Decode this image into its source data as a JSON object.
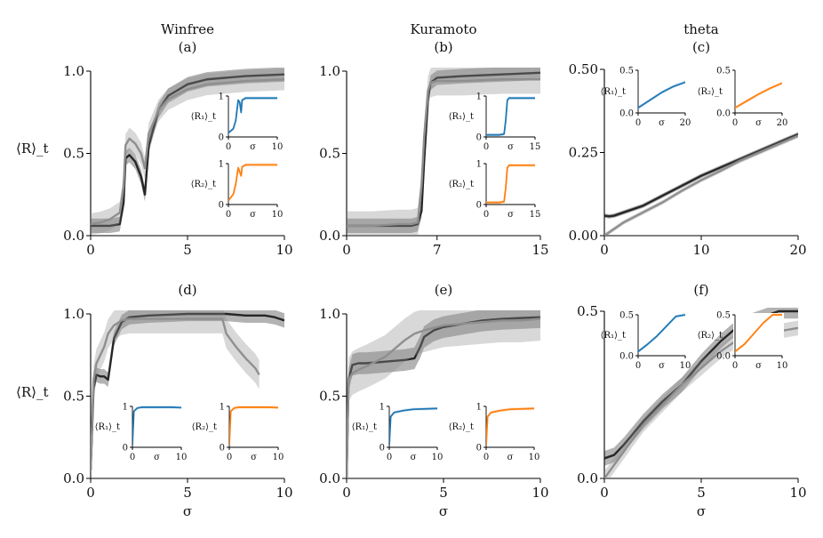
{
  "figure": {
    "row_ylabel": "⟨R⟩_t",
    "xlabel": "σ",
    "inset_ylabel_1": "⟨R₁⟩_t",
    "inset_ylabel_2": "⟨R₂⟩_t",
    "colors": {
      "dark": "#262626",
      "grey": "#8f8f8f",
      "blue": "#1f77b4",
      "orange": "#ff7f0e"
    }
  },
  "chart_data": [
    {
      "id": "a",
      "type": "line",
      "title": "Winfree",
      "panel_label": "(a)",
      "xlabel": "",
      "ylabel": "⟨R⟩_t",
      "xlim": [
        0,
        10
      ],
      "ylim": [
        0,
        1
      ],
      "xticks": [
        0,
        5,
        10
      ],
      "yticks": [
        0.0,
        0.5,
        1.0
      ],
      "series": [
        {
          "color": "dark",
          "x": [
            0,
            0.5,
            1,
            1.5,
            1.7,
            1.8,
            2,
            2.3,
            2.6,
            2.8,
            3,
            3.5,
            4,
            5,
            6,
            8,
            10
          ],
          "y": [
            0.06,
            0.06,
            0.06,
            0.07,
            0.2,
            0.47,
            0.49,
            0.45,
            0.36,
            0.25,
            0.55,
            0.76,
            0.85,
            0.92,
            0.95,
            0.97,
            0.98
          ],
          "band": 0.02
        },
        {
          "color": "grey",
          "x": [
            0,
            0.5,
            1,
            1.5,
            1.7,
            1.8,
            2,
            2.3,
            2.6,
            2.8,
            3,
            3.5,
            4,
            5,
            6,
            8,
            10
          ],
          "y": [
            0.07,
            0.08,
            0.1,
            0.14,
            0.3,
            0.55,
            0.59,
            0.56,
            0.5,
            0.41,
            0.62,
            0.76,
            0.83,
            0.89,
            0.92,
            0.94,
            0.95
          ],
          "band": 0.03
        }
      ],
      "insets": [
        {
          "ylabel": "⟨R₁⟩_t",
          "color": "blue",
          "xlim": [
            0,
            10
          ],
          "ylim": [
            0,
            1
          ],
          "xticks": [
            0,
            10
          ],
          "yticks": [
            0,
            1
          ],
          "x": [
            0,
            1,
            1.5,
            2,
            2.3,
            2.6,
            2.8,
            3.5,
            5,
            10
          ],
          "y": [
            0.1,
            0.2,
            0.4,
            0.9,
            0.85,
            0.6,
            0.9,
            0.95,
            0.95,
            0.95
          ]
        },
        {
          "ylabel": "⟨R₂⟩_t",
          "color": "orange",
          "xlim": [
            0,
            10
          ],
          "ylim": [
            0,
            1
          ],
          "xticks": [
            0,
            10
          ],
          "yticks": [
            0,
            1
          ],
          "x": [
            0,
            1,
            1.5,
            2,
            2.3,
            2.6,
            2.8,
            3.5,
            5,
            10
          ],
          "y": [
            0.1,
            0.25,
            0.5,
            0.9,
            0.8,
            0.7,
            0.92,
            0.97,
            0.97,
            0.97
          ]
        }
      ]
    },
    {
      "id": "b",
      "type": "line",
      "title": "Kuramoto",
      "panel_label": "(b)",
      "xlabel": "",
      "ylabel": "",
      "xlim": [
        0,
        15
      ],
      "ylim": [
        0,
        1
      ],
      "xticks": [
        0,
        7,
        15
      ],
      "yticks": [
        0.0,
        0.5,
        1.0
      ],
      "series": [
        {
          "color": "dark",
          "x": [
            0,
            2,
            4,
            5,
            5.5,
            5.8,
            6,
            6.3,
            6.5,
            7,
            9,
            12,
            15
          ],
          "y": [
            0.06,
            0.06,
            0.06,
            0.06,
            0.07,
            0.15,
            0.45,
            0.83,
            0.93,
            0.96,
            0.97,
            0.98,
            0.99
          ],
          "band": 0.02
        },
        {
          "color": "grey",
          "x": [
            0,
            2,
            4,
            5,
            5.5,
            5.8,
            6,
            6.3,
            6.5,
            7,
            9,
            12,
            15
          ],
          "y": [
            0.06,
            0.06,
            0.07,
            0.07,
            0.08,
            0.3,
            0.6,
            0.88,
            0.93,
            0.94,
            0.94,
            0.95,
            0.95
          ],
          "band": 0.04
        }
      ],
      "insets": [
        {
          "ylabel": "⟨R₁⟩_t",
          "color": "blue",
          "xlim": [
            0,
            15
          ],
          "ylim": [
            0,
            1
          ],
          "xticks": [
            0,
            15
          ],
          "yticks": [
            0,
            1
          ],
          "x": [
            0,
            4,
            5.5,
            6,
            6.5,
            7,
            15
          ],
          "y": [
            0.05,
            0.05,
            0.07,
            0.4,
            0.9,
            0.95,
            0.95
          ]
        },
        {
          "ylabel": "⟨R₂⟩_t",
          "color": "orange",
          "xlim": [
            0,
            15
          ],
          "ylim": [
            0,
            1
          ],
          "xticks": [
            0,
            15
          ],
          "yticks": [
            0,
            1
          ],
          "x": [
            0,
            4,
            5.5,
            6,
            6.5,
            7,
            15
          ],
          "y": [
            0.05,
            0.05,
            0.07,
            0.4,
            0.9,
            0.96,
            0.96
          ]
        }
      ]
    },
    {
      "id": "c",
      "type": "line",
      "title": "theta",
      "panel_label": "(c)",
      "xlabel": "",
      "ylabel": "",
      "xlim": [
        0,
        20
      ],
      "ylim": [
        0,
        0.5
      ],
      "xticks": [
        0,
        10,
        20
      ],
      "yticks": [
        0.0,
        0.25,
        0.5
      ],
      "series": [
        {
          "color": "dark",
          "x": [
            0,
            0.5,
            1,
            2,
            4,
            6,
            8,
            10,
            12,
            14,
            16,
            18,
            20
          ],
          "y": [
            0.06,
            0.058,
            0.06,
            0.07,
            0.09,
            0.12,
            0.15,
            0.18,
            0.205,
            0.23,
            0.255,
            0.28,
            0.305
          ],
          "band": 0.003
        },
        {
          "color": "grey",
          "x": [
            0,
            0.5,
            1,
            2,
            4,
            6,
            8,
            10,
            12,
            14,
            16,
            18,
            20
          ],
          "y": [
            0.0,
            0.01,
            0.02,
            0.04,
            0.07,
            0.1,
            0.135,
            0.167,
            0.195,
            0.225,
            0.25,
            0.275,
            0.3
          ],
          "band": 0.003
        }
      ],
      "insets": [
        {
          "ylabel": "⟨R₁⟩_t",
          "color": "blue",
          "xlim": [
            0,
            20
          ],
          "ylim": [
            0,
            0.5
          ],
          "xticks": [
            0,
            20
          ],
          "yticks": [
            0.0,
            0.5
          ],
          "x": [
            0,
            5,
            10,
            15,
            20
          ],
          "y": [
            0.06,
            0.15,
            0.24,
            0.31,
            0.36
          ]
        },
        {
          "ylabel": "⟨R₂⟩_t",
          "color": "orange",
          "xlim": [
            0,
            20
          ],
          "ylim": [
            0,
            0.5
          ],
          "xticks": [
            0,
            20
          ],
          "yticks": [
            0.0,
            0.5
          ],
          "x": [
            0,
            5,
            10,
            15,
            20
          ],
          "y": [
            0.06,
            0.14,
            0.22,
            0.29,
            0.35
          ]
        }
      ]
    },
    {
      "id": "d",
      "type": "line",
      "title": "",
      "panel_label": "(d)",
      "xlabel": "σ",
      "ylabel": "⟨R⟩_t",
      "xlim": [
        0,
        10
      ],
      "ylim": [
        0,
        1
      ],
      "xticks": [
        0,
        5,
        10
      ],
      "yticks": [
        0.0,
        0.5,
        1.0
      ],
      "series": [
        {
          "color": "dark",
          "x": [
            0,
            0.15,
            0.3,
            0.5,
            0.7,
            0.9,
            1.2,
            1.6,
            2,
            3,
            4,
            5,
            6,
            7,
            8,
            9,
            9.5,
            10
          ],
          "y": [
            0.05,
            0.55,
            0.63,
            0.62,
            0.62,
            0.6,
            0.85,
            0.95,
            0.98,
            0.99,
            0.995,
            1.0,
            1.0,
            1.0,
            0.99,
            0.99,
            0.98,
            0.96
          ],
          "band": 0.02
        },
        {
          "color": "grey",
          "x": [
            0,
            0.15,
            0.3,
            0.5,
            0.7,
            0.9,
            1.2,
            1.6,
            2,
            3,
            4,
            5,
            6,
            6.8,
            7,
            7.5,
            8,
            8.5,
            8.7
          ],
          "y": [
            0.05,
            0.6,
            0.7,
            0.75,
            0.8,
            0.88,
            0.93,
            0.96,
            0.97,
            0.97,
            0.97,
            0.97,
            0.97,
            0.97,
            0.88,
            0.8,
            0.73,
            0.67,
            0.63
          ],
          "band": 0.04
        }
      ],
      "insets": [
        {
          "ylabel": "⟨R₁⟩_t",
          "color": "blue",
          "xlim": [
            0,
            10
          ],
          "ylim": [
            0,
            1
          ],
          "xticks": [
            0,
            10
          ],
          "yticks": [
            0,
            1
          ],
          "x": [
            0,
            0.3,
            1,
            2,
            5,
            8,
            10
          ],
          "y": [
            0.05,
            0.88,
            0.96,
            0.98,
            0.98,
            0.98,
            0.97
          ]
        },
        {
          "ylabel": "⟨R₂⟩_t",
          "color": "orange",
          "xlim": [
            0,
            10
          ],
          "ylim": [
            0,
            1
          ],
          "xticks": [
            0,
            10
          ],
          "yticks": [
            0,
            1
          ],
          "x": [
            0,
            0.3,
            1,
            2,
            5,
            8,
            10
          ],
          "y": [
            0.05,
            0.88,
            0.96,
            0.98,
            0.98,
            0.98,
            0.97
          ]
        }
      ]
    },
    {
      "id": "e",
      "type": "line",
      "title": "",
      "panel_label": "(e)",
      "xlabel": "σ",
      "ylabel": "",
      "xlim": [
        0,
        10
      ],
      "ylim": [
        0,
        1
      ],
      "xticks": [
        0,
        5,
        10
      ],
      "yticks": [
        0.0,
        0.5,
        1.0
      ],
      "series": [
        {
          "color": "dark",
          "x": [
            0,
            0.1,
            0.3,
            0.6,
            1,
            2,
            3,
            3.5,
            3.8,
            4,
            4.5,
            5,
            6,
            7,
            8,
            9,
            10
          ],
          "y": [
            0.0,
            0.6,
            0.69,
            0.7,
            0.7,
            0.71,
            0.72,
            0.73,
            0.8,
            0.86,
            0.9,
            0.92,
            0.94,
            0.96,
            0.97,
            0.975,
            0.98
          ],
          "band": 0.03
        },
        {
          "color": "grey",
          "x": [
            0,
            0.1,
            0.3,
            0.6,
            1,
            2,
            3,
            3.5,
            4,
            5,
            6,
            7,
            8,
            9,
            10
          ],
          "y": [
            0.0,
            0.6,
            0.64,
            0.66,
            0.68,
            0.74,
            0.84,
            0.88,
            0.9,
            0.93,
            0.94,
            0.95,
            0.96,
            0.96,
            0.97
          ],
          "band": 0.06
        }
      ],
      "insets": [
        {
          "ylabel": "⟨R₁⟩_t",
          "color": "blue",
          "xlim": [
            0,
            10
          ],
          "ylim": [
            0,
            1
          ],
          "xticks": [
            0,
            10
          ],
          "yticks": [
            0,
            1
          ],
          "x": [
            0,
            0.3,
            1,
            3,
            5,
            10
          ],
          "y": [
            0.05,
            0.75,
            0.85,
            0.9,
            0.93,
            0.95
          ]
        },
        {
          "ylabel": "⟨R₂⟩_t",
          "color": "orange",
          "xlim": [
            0,
            10
          ],
          "ylim": [
            0,
            1
          ],
          "xticks": [
            0,
            10
          ],
          "yticks": [
            0,
            1
          ],
          "x": [
            0,
            0.3,
            1,
            3,
            5,
            10
          ],
          "y": [
            0.05,
            0.75,
            0.85,
            0.9,
            0.93,
            0.95
          ]
        }
      ]
    },
    {
      "id": "f",
      "type": "line",
      "title": "",
      "panel_label": "(f)",
      "xlabel": "σ",
      "ylabel": "",
      "xlim": [
        0,
        10
      ],
      "ylim": [
        0,
        0.5
      ],
      "xticks": [
        0,
        5,
        10
      ],
      "yticks": [
        0.0,
        0.5
      ],
      "series": [
        {
          "color": "dark",
          "x": [
            0,
            0.5,
            1,
            2,
            3,
            4,
            5,
            6,
            7,
            8,
            9,
            10
          ],
          "y": [
            0.06,
            0.07,
            0.1,
            0.17,
            0.23,
            0.28,
            0.35,
            0.41,
            0.46,
            0.48,
            0.5,
            0.5
          ],
          "band": 0.01
        },
        {
          "color": "grey",
          "x": [
            0,
            0.5,
            1,
            2,
            3,
            4,
            5,
            6,
            7,
            8,
            9,
            10
          ],
          "y": [
            0.0,
            0.04,
            0.08,
            0.16,
            0.22,
            0.28,
            0.33,
            0.38,
            0.42,
            0.44,
            0.44,
            0.45
          ],
          "band": 0.01
        }
      ],
      "insets": [
        {
          "ylabel": "⟨R₁⟩_t",
          "color": "blue",
          "xlim": [
            0,
            10
          ],
          "ylim": [
            0,
            0.5
          ],
          "xticks": [
            0,
            10
          ],
          "yticks": [
            0.0,
            0.5
          ],
          "x": [
            0,
            2,
            4,
            6,
            8,
            10
          ],
          "y": [
            0.05,
            0.14,
            0.24,
            0.36,
            0.48,
            0.5
          ]
        },
        {
          "ylabel": "⟨R₂⟩_t",
          "color": "orange",
          "xlim": [
            0,
            10
          ],
          "ylim": [
            0,
            0.5
          ],
          "xticks": [
            0,
            10
          ],
          "yticks": [
            0.0,
            0.5
          ],
          "x": [
            0,
            2,
            4,
            6,
            8,
            10
          ],
          "y": [
            0.05,
            0.14,
            0.27,
            0.4,
            0.5,
            0.5
          ]
        }
      ]
    }
  ]
}
